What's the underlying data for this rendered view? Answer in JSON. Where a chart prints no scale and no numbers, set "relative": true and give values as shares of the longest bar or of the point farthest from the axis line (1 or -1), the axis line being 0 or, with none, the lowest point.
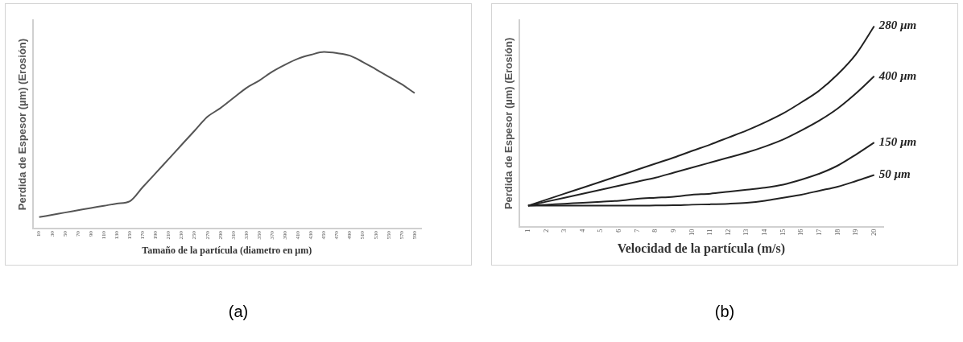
{
  "chart_data": [
    {
      "type": "line",
      "relative": true,
      "xlabel": "Tamaño de la partícula (diametro en µm)",
      "ylabel": "Perdida de Espesor (µm) (Erosión)",
      "categories": [
        "10",
        "30",
        "50",
        "70",
        "90",
        "110",
        "130",
        "150",
        "170",
        "190",
        "210",
        "230",
        "250",
        "270",
        "290",
        "310",
        "330",
        "350",
        "370",
        "390",
        "410",
        "430",
        "450",
        "470",
        "490",
        "510",
        "530",
        "550",
        "570",
        "590"
      ],
      "series": [
        {
          "color": "#555555",
          "values": [
            0.065,
            0.078,
            0.091,
            0.104,
            0.117,
            0.129,
            0.142,
            0.155,
            0.235,
            0.314,
            0.394,
            0.474,
            0.554,
            0.633,
            0.682,
            0.739,
            0.796,
            0.838,
            0.888,
            0.928,
            0.962,
            0.984,
            1,
            0.993,
            0.979,
            0.943,
            0.902,
            0.86,
            0.817,
            0.767
          ]
        }
      ],
      "grid": false,
      "legend": false,
      "marker": "none",
      "line_style": "solid",
      "annotations": [
        "(a)"
      ]
    },
    {
      "type": "line",
      "relative": true,
      "xlabel": "Velocidad de la partícula (m/s)",
      "ylabel": "Perdida de Espesor (µm) (Erosión)",
      "categories": [
        "1",
        "2",
        "3",
        "4",
        "5",
        "6",
        "7",
        "8",
        "9",
        "10",
        "11",
        "12",
        "13",
        "14",
        "15",
        "16",
        "17",
        "18",
        "19",
        "20"
      ],
      "series": [
        {
          "name": "280 µm",
          "color": "#222222",
          "values": [
            0.105,
            0.135,
            0.165,
            0.195,
            0.225,
            0.255,
            0.285,
            0.315,
            0.345,
            0.378,
            0.41,
            0.445,
            0.48,
            0.52,
            0.565,
            0.62,
            0.68,
            0.76,
            0.86,
            1
          ]
        },
        {
          "name": "400 µm",
          "color": "#222222",
          "values": [
            0.105,
            0.125,
            0.145,
            0.165,
            0.185,
            0.205,
            0.225,
            0.245,
            0.27,
            0.295,
            0.32,
            0.345,
            0.37,
            0.4,
            0.435,
            0.48,
            0.53,
            0.59,
            0.665,
            0.75
          ]
        },
        {
          "name": "150 µm",
          "color": "#222222",
          "values": [
            0.105,
            0.11,
            0.115,
            0.12,
            0.125,
            0.13,
            0.14,
            0.145,
            0.15,
            0.16,
            0.165,
            0.175,
            0.185,
            0.195,
            0.21,
            0.235,
            0.265,
            0.305,
            0.36,
            0.42
          ]
        },
        {
          "name": "50 µm",
          "color": "#222222",
          "values": [
            0.105,
            0.105,
            0.105,
            0.105,
            0.105,
            0.105,
            0.105,
            0.106,
            0.107,
            0.11,
            0.112,
            0.115,
            0.12,
            0.13,
            0.145,
            0.16,
            0.18,
            0.2,
            0.228,
            0.258
          ]
        }
      ],
      "grid": false,
      "legend": false,
      "marker": "none",
      "line_style": "solid",
      "annotations": [
        "(b)"
      ]
    }
  ]
}
